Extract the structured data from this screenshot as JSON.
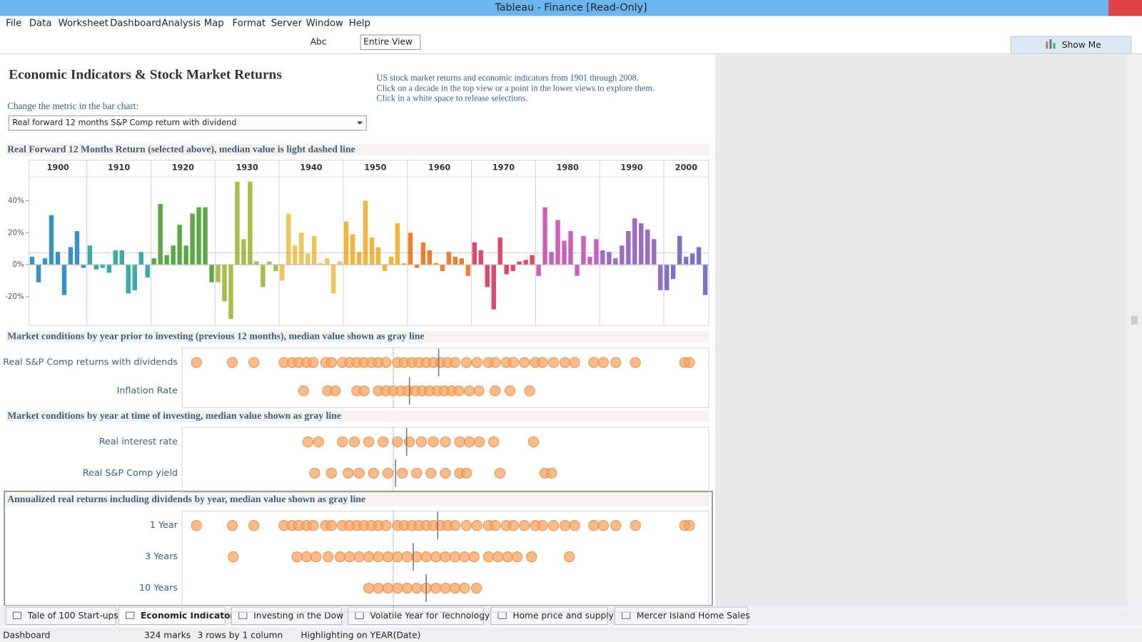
{
  "window": {
    "title": "Tableau - Finance [Read-Only]"
  },
  "menu": [
    "File",
    "Data",
    "Worksheet",
    "Dashboard",
    "Analysis",
    "Map",
    "Format",
    "Server",
    "Window",
    "Help"
  ],
  "toolbar": {
    "text_button": "Abc",
    "fit": "Entire View",
    "show_me": "Show Me"
  },
  "dashboard": {
    "title": "Economic Indicators & Stock Market Returns",
    "description": [
      "US stock market returns and economic indicators from 1901 through 2008.",
      "Click on a decade in the top view or a point in the lower views to explore them.",
      "Click in a white space to release selections."
    ],
    "parameter_label": "Change the metric in the bar chart:",
    "parameter_value": "Real forward 12 months S&P Comp return with dividend"
  },
  "chart_data": [
    {
      "type": "bar",
      "title": "Real Forward 12 Months Return (selected above), median value is light dashed line",
      "ylim": [
        -38,
        55
      ],
      "yticks": [
        {
          "value": -20,
          "label": "-20%"
        },
        {
          "value": 0,
          "label": "0%"
        },
        {
          "value": 20,
          "label": "20%"
        },
        {
          "value": 40,
          "label": "40%"
        }
      ],
      "median": 7.4,
      "series": [
        {
          "name": "1900",
          "color": "#3a8fc3",
          "values": [
            5,
            -11,
            4,
            31,
            8,
            -19,
            11,
            21,
            -2
          ]
        },
        {
          "name": "1910",
          "color": "#3aaba8",
          "values": [
            12,
            -3,
            -2,
            -5,
            9,
            9,
            -18,
            -16,
            8,
            -8
          ]
        },
        {
          "name": "1920",
          "color": "#5aa846",
          "values": [
            4,
            38,
            6,
            12,
            25,
            12,
            32,
            36,
            36,
            -11
          ]
        },
        {
          "name": "1930",
          "color": "#a9bd4a",
          "values": [
            -11,
            -23,
            -34,
            52,
            16,
            52,
            2,
            -14,
            2,
            -4
          ]
        },
        {
          "name": "1940",
          "color": "#f0c45a",
          "values": [
            -10,
            32,
            12,
            20,
            7,
            18,
            1,
            4,
            -18,
            2
          ]
        },
        {
          "name": "1950",
          "color": "#f6b43a",
          "values": [
            27,
            19,
            8,
            40,
            17,
            11,
            -4,
            5,
            26,
            1
          ]
        },
        {
          "name": "1960",
          "color": "#f07f2c",
          "values": [
            20,
            -2,
            14,
            9,
            1,
            -4,
            8,
            5,
            4,
            -7
          ]
        },
        {
          "name": "1970",
          "color": "#db4a6a",
          "values": [
            14,
            9,
            -14,
            -28,
            17,
            -6,
            -4,
            2,
            3,
            6
          ]
        },
        {
          "name": "1980",
          "color": "#c961b9",
          "values": [
            -7,
            36,
            8,
            28,
            15,
            21,
            -7,
            18,
            5,
            16
          ]
        },
        {
          "name": "1990",
          "color": "#9b6cc0",
          "values": [
            9,
            8,
            4,
            12,
            21,
            29,
            26,
            22,
            16,
            -16
          ]
        },
        {
          "name": "2000",
          "color": "#7a72c4",
          "values": [
            -16,
            -9,
            18,
            5,
            7,
            11,
            -19
          ]
        }
      ]
    },
    {
      "type": "strip",
      "title": "Market conditions by year prior to investing (previous 12 months), median value shown as gray line",
      "xlim": [
        -50,
        60
      ],
      "color": "#f5a462",
      "series": [
        {
          "name": "Real S&P Comp returns with dividends",
          "median": 3.6,
          "values": [
            -47,
            -39.5,
            -35,
            -28.7,
            -27,
            -25.6,
            -24,
            -22.6,
            -20,
            -18.8,
            -16.5,
            -15,
            -13.5,
            -12,
            -10.4,
            -9,
            -7.4,
            -5,
            -3.6,
            -2,
            -0.5,
            1,
            2.5,
            4,
            5.5,
            7,
            9.4,
            11.6,
            14,
            15.4,
            17.7,
            19.2,
            21.5,
            23.8,
            25.3,
            27.6,
            30,
            32,
            36,
            38,
            40.6,
            44.7,
            55,
            56
          ]
        },
        {
          "name": "Inflation Rate",
          "median": -2.5,
          "values": [
            -24.6,
            -19.6,
            -18,
            -13.5,
            -12,
            -9,
            -7.4,
            -5.9,
            -4.3,
            -2.8,
            -1.3,
            0.2,
            1.7,
            3.3,
            4.8,
            6.3,
            7.8,
            10,
            12,
            15.4,
            18.5,
            22.6
          ]
        }
      ]
    },
    {
      "type": "strip",
      "title": "Market conditions by year at time of investing, median value shown as gray line",
      "xlim": [
        -50,
        60
      ],
      "color": "#f5a462",
      "series": [
        {
          "name": "Real interest rate",
          "median": -3.1,
          "values": [
            -23.7,
            -21.5,
            -16.5,
            -14,
            -11,
            -8,
            -5,
            -2.5,
            0,
            2.5,
            5,
            8,
            10,
            12.1,
            15.1,
            23.4
          ]
        },
        {
          "name": "Real S&P Comp yield",
          "median": -5.4,
          "values": [
            -22.3,
            -18.8,
            -15.3,
            -13,
            -10,
            -7,
            -4,
            -1,
            2,
            5,
            8,
            9.4,
            16.4,
            25.8,
            27.2
          ]
        }
      ]
    },
    {
      "type": "strip",
      "title": "Annualized real returns including dividends by year, median value shown as gray line",
      "xlim": [
        -50,
        60
      ],
      "color": "#f5a462",
      "series": [
        {
          "name": "1 Year",
          "median": 3.4,
          "values": [
            -47,
            -39.5,
            -35,
            -28.7,
            -27,
            -25.6,
            -24,
            -22.6,
            -20,
            -18.8,
            -16.5,
            -15,
            -13.5,
            -12,
            -10.4,
            -9,
            -7.4,
            -5,
            -3.6,
            -2,
            -0.5,
            1,
            2.5,
            4,
            5.5,
            7,
            9.4,
            11.6,
            14,
            15.4,
            17.7,
            19.2,
            21.5,
            23.8,
            25.3,
            27.6,
            30,
            32,
            36,
            38,
            40.6,
            44.7,
            55,
            56
          ]
        },
        {
          "name": "3 Years",
          "median": -1.7,
          "values": [
            -39.3,
            -26,
            -24,
            -22,
            -19.5,
            -17,
            -15,
            -13,
            -11,
            -9,
            -7,
            -5,
            -3,
            -1,
            1,
            3,
            5,
            7,
            9,
            11,
            14,
            16,
            18,
            20,
            23,
            30.9
          ]
        },
        {
          "name": "10 Years",
          "median": 1,
          "values": [
            -11,
            -9,
            -7,
            -5,
            -3,
            -1,
            1,
            3,
            5,
            7,
            9,
            11.5
          ]
        }
      ]
    }
  ],
  "tabs": [
    "Tale of 100 Start-ups",
    "Economic Indicators",
    "Investing in the Dow",
    "Volatile Year for Technology",
    "Home price and supply",
    "Mercer Island Home Sales"
  ],
  "status": {
    "sheet": "Dashboard",
    "marks": "324 marks",
    "layout": "3 rows by 1 column",
    "highlight": "Highlighting on YEAR(Date)"
  }
}
